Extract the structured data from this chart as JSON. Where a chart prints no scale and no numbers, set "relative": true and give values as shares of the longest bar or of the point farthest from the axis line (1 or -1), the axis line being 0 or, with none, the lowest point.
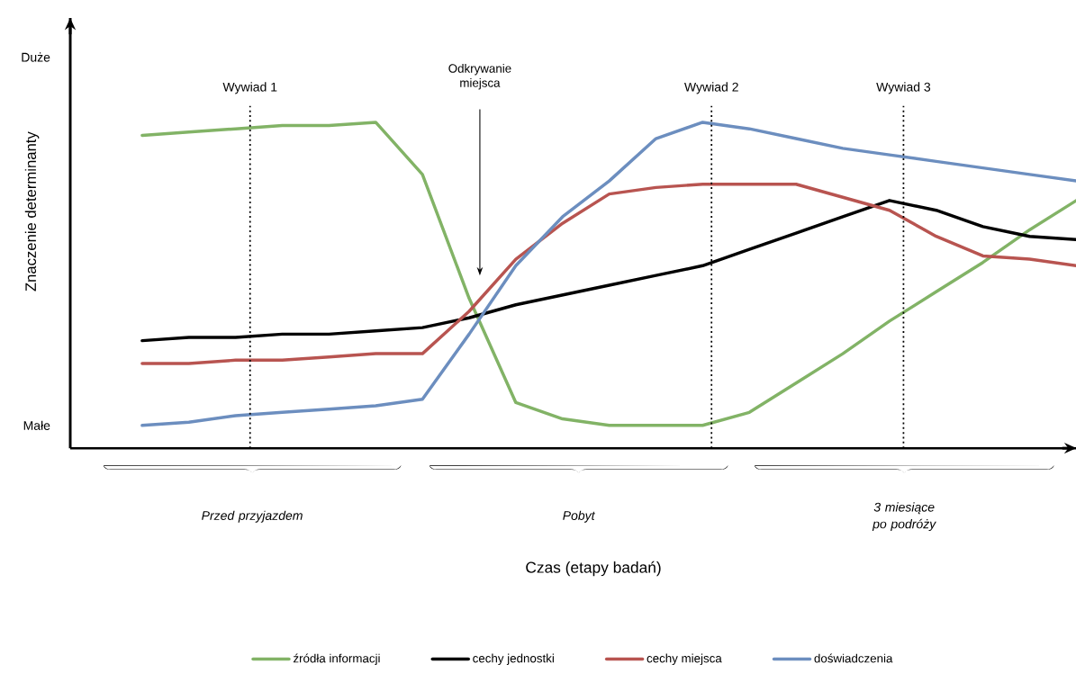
{
  "chart_data": {
    "type": "line",
    "relative": true,
    "categories": [
      null,
      null,
      null,
      null,
      null,
      null,
      null,
      null,
      null,
      null,
      null,
      null,
      null,
      null,
      null,
      null,
      null,
      null,
      null,
      null,
      null
    ],
    "series": [
      {
        "name": "źródła informacji",
        "color": "#82b366",
        "values": [
          0.96,
          0.97,
          0.98,
          0.99,
          0.99,
          1.0,
          0.84,
          0.46,
          0.14,
          0.09,
          0.07,
          0.07,
          0.07,
          0.11,
          0.2,
          0.29,
          0.39,
          0.48,
          0.57,
          0.67,
          0.76
        ]
      },
      {
        "name": "cechy jednostki",
        "color": "#000000",
        "values": [
          0.33,
          0.34,
          0.34,
          0.35,
          0.35,
          0.36,
          0.37,
          0.4,
          0.44,
          0.47,
          0.5,
          0.53,
          0.56,
          0.61,
          0.66,
          0.71,
          0.76,
          0.73,
          0.68,
          0.65,
          0.64
        ]
      },
      {
        "name": "cechy miejsca",
        "color": "#b85450",
        "values": [
          0.26,
          0.26,
          0.27,
          0.27,
          0.28,
          0.29,
          0.29,
          0.42,
          0.58,
          0.69,
          0.78,
          0.8,
          0.81,
          0.81,
          0.81,
          0.77,
          0.73,
          0.65,
          0.59,
          0.58,
          0.56
        ]
      },
      {
        "name": "doświadczenia",
        "color": "#6c8ebf",
        "values": [
          0.07,
          0.08,
          0.1,
          0.11,
          0.12,
          0.13,
          0.15,
          0.35,
          0.56,
          0.71,
          0.82,
          0.95,
          1.0,
          0.98,
          0.95,
          0.92,
          0.9,
          0.88,
          0.86,
          0.84,
          0.82
        ]
      }
    ],
    "annotations": [
      "Małe",
      "Duże",
      "Odkrywanie miejsca",
      "Wywiad 1",
      "Wywiad 2",
      "Wywiad 3",
      "Przed przyjazdem",
      "Pobyt",
      "3 miesiące po podróży",
      "Czas (etapy badań)",
      "Znaczenie determinanty"
    ],
    "legend": "bottom"
  }
}
